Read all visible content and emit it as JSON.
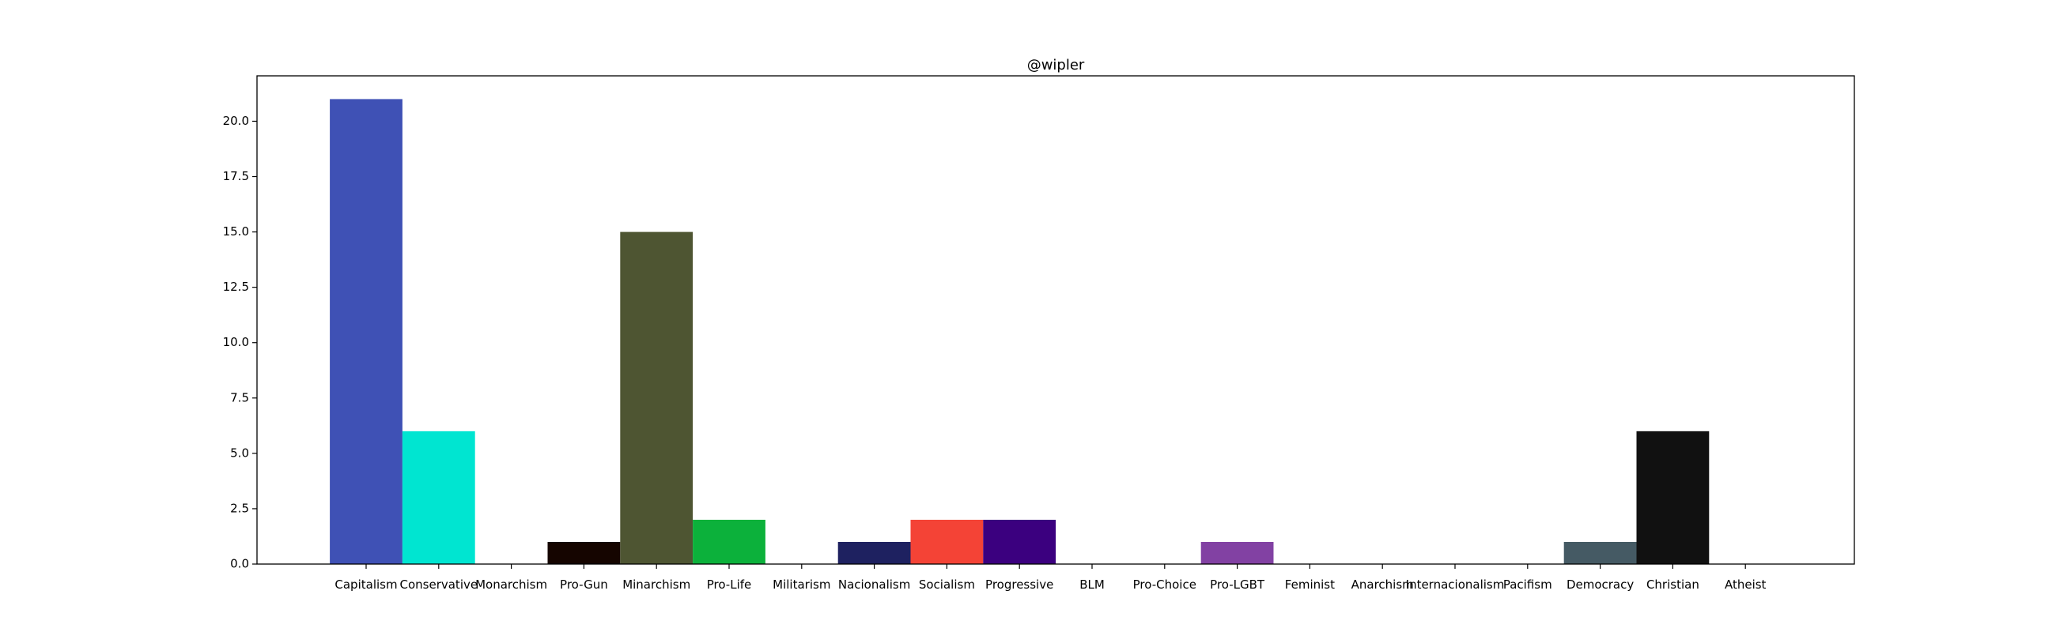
{
  "chart_data": {
    "type": "bar",
    "title": "@wipler",
    "xlabel": "",
    "ylabel": "",
    "categories": [
      "Capitalism",
      "Conservative",
      "Monarchism",
      "Pro-Gun",
      "Minarchism",
      "Pro-Life",
      "Militarism",
      "Nacionalism",
      "Socialism",
      "Progressive",
      "BLM",
      "Pro-Choice",
      "Pro-LGBT",
      "Feminist",
      "Anarchism",
      "Internacionalism",
      "Pacifism",
      "Democracy",
      "Christian",
      "Atheist"
    ],
    "values": [
      21,
      6,
      0,
      1,
      15,
      2,
      0,
      1,
      2,
      2,
      0,
      0,
      1,
      0,
      0,
      0,
      0,
      1,
      6,
      0
    ],
    "colors": [
      "#3f51b5",
      "#00e5d1",
      "#ffffff",
      "#150500",
      "#4e5532",
      "#0cb13b",
      "#ffffff",
      "#1e2160",
      "#f44336",
      "#3b007f",
      "#ffffff",
      "#ffffff",
      "#8241a3",
      "#ffffff",
      "#ffffff",
      "#ffffff",
      "#ffffff",
      "#455a64",
      "#111111",
      "#ffffff"
    ],
    "yticks": [
      "0.0",
      "2.5",
      "5.0",
      "7.5",
      "10.0",
      "12.5",
      "15.0",
      "17.5",
      "20.0"
    ],
    "ylim": [
      0,
      22.05
    ],
    "grid": false,
    "legend": "none"
  }
}
